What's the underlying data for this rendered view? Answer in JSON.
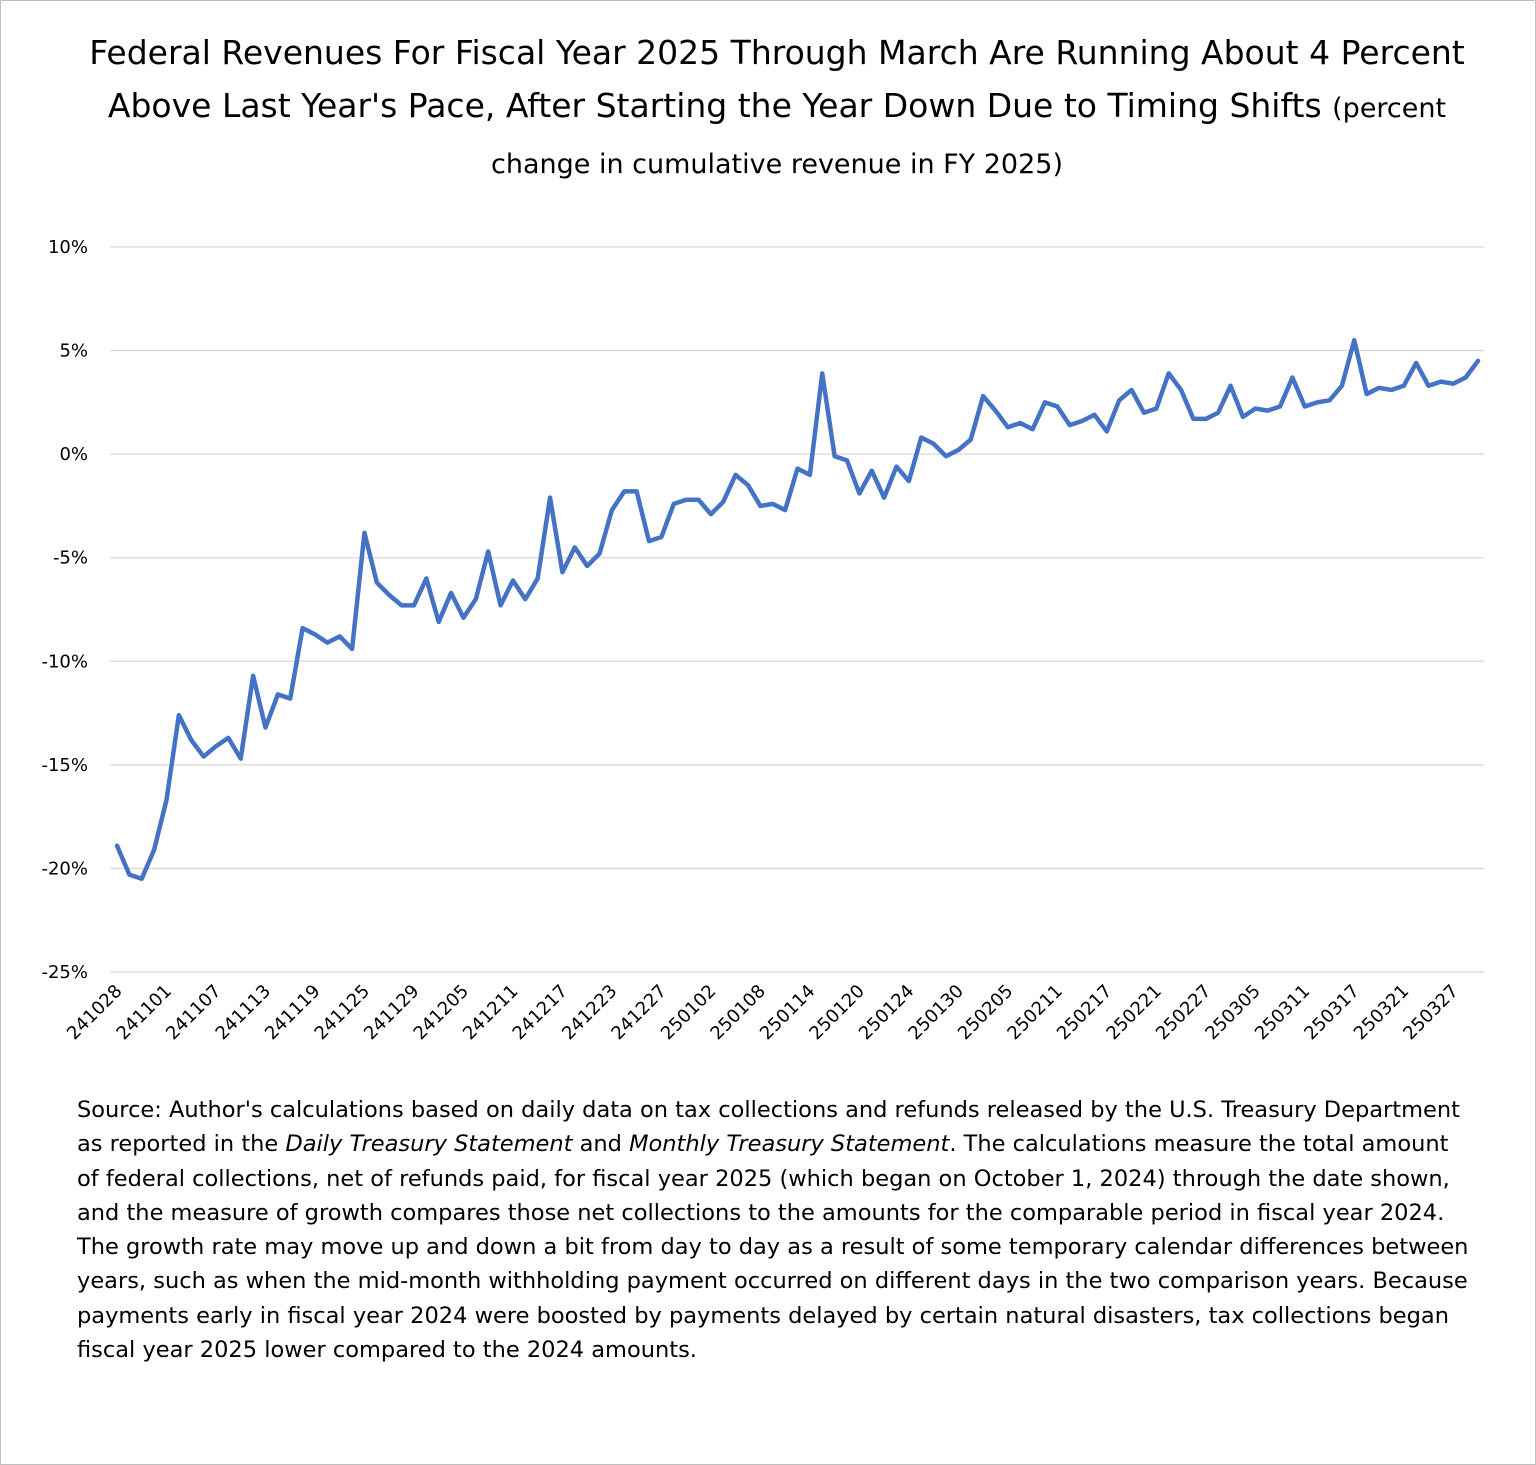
{
  "title": {
    "main": "Federal Revenues For Fiscal Year 2025 Through March Are Running About 4 Percent Above Last Year's Pace, After Starting the Year Down Due to Timing Shifts",
    "subtitle": "(percent change in cumulative revenue in FY 2025)"
  },
  "note": {
    "part1": "Source: Author's calculations based on daily data on tax collections and refunds released by the U.S. Treasury Department as reported in the ",
    "italic1": "Daily Treasury Statement",
    "part2": " and ",
    "italic2": "Monthly Treasury Statement",
    "part3": ". The calculations measure the total amount of federal collections, net of refunds paid, for fiscal year 2025 (which began on October 1, 2024) through the date shown, and the measure of growth compares those net collections to the amounts for the comparable period in fiscal year 2024. The growth rate may move up and down a bit from day to day as a result of some temporary calendar differences between years, such as when the mid-month withholding payment occurred on different days in the two comparison years. Because payments early in fiscal year 2024 were boosted by payments delayed by certain natural disasters, tax collections began fiscal year 2025 lower compared to the 2024 amounts."
  },
  "chart_data": {
    "type": "line",
    "ylim": [
      -25,
      10
    ],
    "y_ticks": [
      10,
      5,
      0,
      -5,
      -10,
      -15,
      -20,
      -25
    ],
    "y_tick_labels": [
      "10%",
      "5%",
      "0%",
      "-5%",
      "-10%",
      "-15%",
      "-20%",
      "-25%"
    ],
    "x_tick_labels": [
      "241028",
      "241101",
      "241107",
      "241113",
      "241119",
      "241125",
      "241129",
      "241205",
      "241211",
      "241217",
      "241223",
      "241227",
      "250102",
      "250108",
      "250114",
      "250120",
      "250124",
      "250130",
      "250205",
      "250211",
      "250217",
      "250221",
      "250227",
      "250305",
      "250311",
      "250317",
      "250321",
      "250327"
    ],
    "x_tick_every": 4,
    "grid": true,
    "color": "#4472C4",
    "series": [
      {
        "values": [
          -18.9,
          -20.3,
          -20.5,
          -19.1,
          -16.7,
          -12.6,
          -13.8,
          -14.6,
          -14.1,
          -13.7,
          -14.7,
          -10.7,
          -13.2,
          -11.6,
          -11.8,
          -8.4,
          -8.7,
          -9.1,
          -8.8,
          -9.4,
          -3.8,
          -6.2,
          -6.8,
          -7.3,
          -7.3,
          -6.0,
          -8.1,
          -6.7,
          -7.9,
          -7.0,
          -4.7,
          -7.3,
          -6.1,
          -7.0,
          -6.0,
          -2.1,
          -5.7,
          -4.5,
          -5.4,
          -4.8,
          -2.7,
          -1.8,
          -1.8,
          -4.2,
          -4.0,
          -2.4,
          -2.2,
          -2.2,
          -2.9,
          -2.3,
          -1.0,
          -1.5,
          -2.5,
          -2.4,
          -2.7,
          -0.7,
          -1.0,
          3.9,
          -0.1,
          -0.3,
          -1.9,
          -0.8,
          -2.1,
          -0.6,
          -1.3,
          0.8,
          0.5,
          -0.1,
          0.2,
          0.7,
          2.8,
          2.1,
          1.3,
          1.5,
          1.2,
          2.5,
          2.3,
          1.4,
          1.6,
          1.9,
          1.1,
          2.6,
          3.1,
          2.0,
          2.2,
          3.9,
          3.1,
          1.7,
          1.7,
          2.0,
          3.3,
          1.8,
          2.2,
          2.1,
          2.3,
          3.7,
          2.3,
          2.5,
          2.6,
          3.3,
          5.5,
          2.9,
          3.2,
          3.1,
          3.3,
          4.4,
          3.3,
          3.5,
          3.4,
          3.7,
          4.5
        ]
      }
    ]
  }
}
